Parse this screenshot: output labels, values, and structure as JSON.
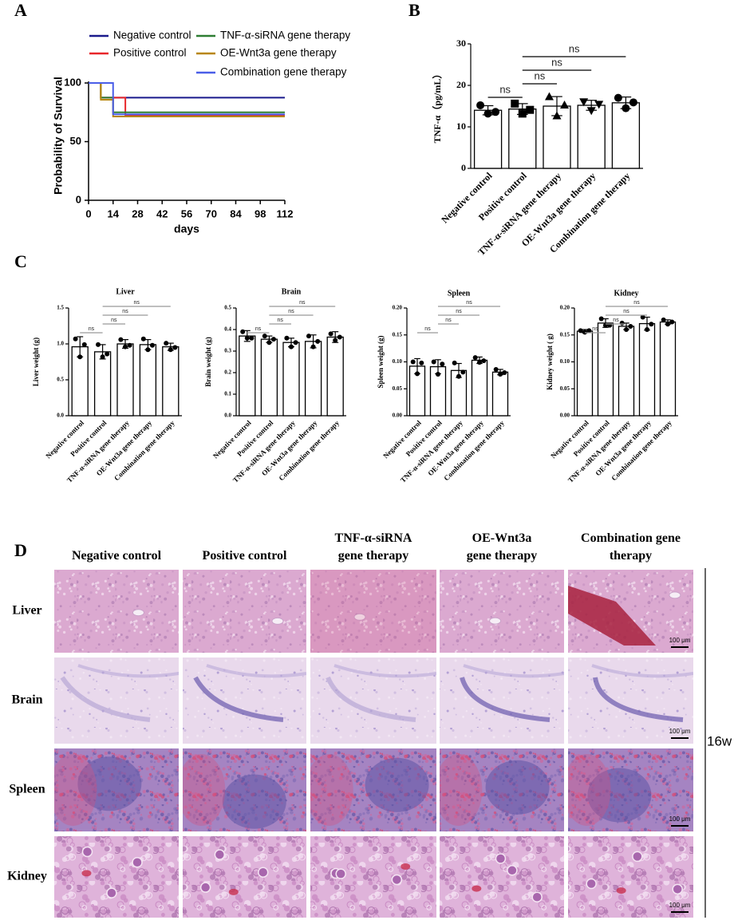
{
  "panel_labels": [
    "A",
    "B",
    "C",
    "D"
  ],
  "chart_data": [
    {
      "type": "line",
      "step": true,
      "xlabel": "days",
      "ylabel": "Probability of Survival",
      "x": [
        0,
        7,
        14,
        21,
        112
      ],
      "xlim": [
        0,
        112
      ],
      "xticks": [
        0,
        14,
        28,
        42,
        56,
        70,
        84,
        98,
        112
      ],
      "ylim": [
        0,
        100
      ],
      "yticks": [
        0,
        50,
        100
      ],
      "series": [
        {
          "name": "Negative control",
          "color": "#1a1a8c",
          "values": [
            100,
            87.5,
            87.5,
            87.5,
            87.5
          ]
        },
        {
          "name": "Positive control",
          "color": "#e8262a",
          "values": [
            100,
            87.5,
            87.5,
            72.7,
            72.7
          ]
        },
        {
          "name": "TNF-α-siRNA gene therapy",
          "color": "#2e7d32",
          "values": [
            100,
            87.5,
            75,
            75,
            75
          ]
        },
        {
          "name": "OE-Wnt3a gene therapy",
          "color": "#b8860b",
          "values": [
            100,
            85.7,
            71.4,
            71.4,
            71.4
          ]
        },
        {
          "name": "Combination gene therapy",
          "color": "#4a5ee8",
          "values": [
            100,
            100,
            73.3,
            73.3,
            73.3
          ]
        }
      ]
    },
    {
      "type": "bar",
      "ylabel": "TNF-α（pg/mL）",
      "categories": [
        "Negative control",
        "Positive control",
        "TNF-α-siRNA gene therapy",
        "OE-Wnt3a gene therapy",
        "Combination gene therapy"
      ],
      "values": [
        14.0,
        14.3,
        15.0,
        15.2,
        15.8
      ],
      "errors": [
        1.1,
        1.3,
        2.3,
        1.2,
        1.4
      ],
      "points": [
        [
          15.2,
          13.2,
          13.6
        ],
        [
          15.6,
          13.2,
          14.1
        ],
        [
          17.2,
          12.6,
          15.2
        ],
        [
          16.1,
          14.0,
          15.5
        ],
        [
          17.0,
          14.5,
          15.9
        ]
      ],
      "markers": [
        "circle",
        "square",
        "triangle",
        "triangle-down",
        "circle"
      ],
      "color": "#ffffff",
      "ylim": [
        0,
        30
      ],
      "yticks": [
        0,
        10,
        20,
        30
      ],
      "brackets": [
        {
          "from": 0,
          "to": 1,
          "label": "ns"
        },
        {
          "from": 1,
          "to": 2,
          "label": "ns"
        },
        {
          "from": 1,
          "to": 3,
          "label": "ns"
        },
        {
          "from": 1,
          "to": 4,
          "label": "ns"
        }
      ]
    },
    {
      "type": "bar",
      "title": "Liver",
      "ylabel": "Liver weight (g)",
      "categories": [
        "Negative control",
        "Positive control",
        "TNF-α-siRNA gene therapy",
        "OE-Wnt3a gene therapy",
        "Combination gene therapy"
      ],
      "values": [
        0.96,
        0.89,
        1.0,
        0.99,
        0.96
      ],
      "errors": [
        0.14,
        0.1,
        0.06,
        0.07,
        0.05
      ],
      "points": [
        [
          1.07,
          0.82,
          0.99
        ],
        [
          0.99,
          0.82,
          0.86
        ],
        [
          1.06,
          0.96,
          0.98
        ],
        [
          1.07,
          0.92,
          0.98
        ],
        [
          1.01,
          0.92,
          0.95
        ]
      ],
      "color": "#ffffff",
      "ylim": [
        0,
        1.5
      ],
      "yticks": [
        {
          "value": 0,
          "label": "0.0"
        },
        0.5,
        {
          "value": 1,
          "label": "1.0"
        },
        1.5
      ],
      "brackets": [
        {
          "from": 0,
          "to": 1,
          "label": "ns"
        },
        {
          "from": 1,
          "to": 2,
          "label": "ns"
        },
        {
          "from": 1,
          "to": 3,
          "label": "ns"
        },
        {
          "from": 1,
          "to": 4,
          "label": "ns"
        }
      ]
    },
    {
      "type": "bar",
      "title": "Brain",
      "ylabel": "Brain weight (g)",
      "categories": [
        "Negative control",
        "Positive control",
        "TNF-α-siRNA gene therapy",
        "OE-Wnt3a gene therapy",
        "Combination gene therapy"
      ],
      "values": [
        0.37,
        0.355,
        0.34,
        0.345,
        0.365
      ],
      "errors": [
        0.025,
        0.015,
        0.02,
        0.03,
        0.025
      ],
      "points": [
        [
          0.39,
          0.36,
          0.36
        ],
        [
          0.37,
          0.34,
          0.355
        ],
        [
          0.36,
          0.32,
          0.34
        ],
        [
          0.37,
          0.32,
          0.345
        ],
        [
          0.38,
          0.35,
          0.365
        ]
      ],
      "color": "#ffffff",
      "ylim": [
        0,
        0.5
      ],
      "yticks": [
        {
          "value": 0,
          "label": "0.0"
        },
        0.1,
        0.2,
        0.3,
        0.4,
        0.5
      ],
      "brackets": [
        {
          "from": 0,
          "to": 1,
          "label": "ns"
        },
        {
          "from": 1,
          "to": 2,
          "label": "ns"
        },
        {
          "from": 1,
          "to": 3,
          "label": "ns"
        },
        {
          "from": 1,
          "to": 4,
          "label": "ns"
        }
      ]
    },
    {
      "type": "bar",
      "title": "Spleen",
      "ylabel": "Spleen weight (g)",
      "categories": [
        "Negative control",
        "Positive control",
        "TNF-α-siRNA gene therapy",
        "OE-Wnt3a gene therapy",
        "Combination gene therapy"
      ],
      "values": [
        0.092,
        0.091,
        0.084,
        0.103,
        0.081
      ],
      "errors": [
        0.014,
        0.013,
        0.013,
        0.006,
        0.005
      ],
      "points": [
        [
          0.1,
          0.078,
          0.098
        ],
        [
          0.1,
          0.077,
          0.096
        ],
        [
          0.098,
          0.073,
          0.081
        ],
        [
          0.108,
          0.099,
          0.102
        ],
        [
          0.086,
          0.077,
          0.08
        ]
      ],
      "color": "#ffffff",
      "ylim": [
        0,
        0.2
      ],
      "yticks": [
        {
          "value": 0,
          "label": "0.00"
        },
        {
          "value": 0.05,
          "label": "0.05"
        },
        {
          "value": 0.1,
          "label": "0.10"
        },
        {
          "value": 0.15,
          "label": "0.15"
        },
        {
          "value": 0.2,
          "label": "0.20"
        }
      ],
      "brackets": [
        {
          "from": 0,
          "to": 1,
          "label": "ns"
        },
        {
          "from": 1,
          "to": 2,
          "label": "ns"
        },
        {
          "from": 1,
          "to": 3,
          "label": "ns"
        },
        {
          "from": 1,
          "to": 4,
          "label": "ns"
        }
      ]
    },
    {
      "type": "bar",
      "title": "Kidney",
      "ylabel": "Kidney weight ( g)",
      "categories": [
        "Negative control",
        "Positive control",
        "TNF-α-siRNA gene therapy",
        "OE-Wnt3a gene therapy",
        "Combination gene therapy"
      ],
      "values": [
        0.157,
        0.172,
        0.166,
        0.171,
        0.174
      ],
      "errors": [
        0.003,
        0.008,
        0.006,
        0.012,
        0.004
      ],
      "points": [
        [
          0.158,
          0.155,
          0.158
        ],
        [
          0.18,
          0.168,
          0.168
        ],
        [
          0.172,
          0.16,
          0.166
        ],
        [
          0.183,
          0.16,
          0.17
        ],
        [
          0.178,
          0.17,
          0.174
        ]
      ],
      "color": "#ffffff",
      "ylim": [
        0,
        0.2
      ],
      "yticks": [
        {
          "value": 0,
          "label": "0.00"
        },
        {
          "value": 0.05,
          "label": "0.05"
        },
        {
          "value": 0.1,
          "label": "0.10"
        },
        {
          "value": 0.15,
          "label": "0.15"
        },
        {
          "value": 0.2,
          "label": "0.20"
        }
      ],
      "brackets": [
        {
          "from": 0,
          "to": 1,
          "label": "ns"
        },
        {
          "from": 1,
          "to": 2,
          "label": "ns"
        },
        {
          "from": 1,
          "to": 3,
          "label": "ns"
        },
        {
          "from": 1,
          "to": 4,
          "label": "ns"
        }
      ]
    }
  ],
  "histology": {
    "columns": [
      "Negative control",
      "Positive control",
      "TNF-α-siRNA gene therapy",
      "OE-Wnt3a gene therapy",
      "Combination gene therapy"
    ],
    "rows": [
      "Liver",
      "Brain",
      "Spleen",
      "Kidney"
    ],
    "scale_bar": "100 μm",
    "time_label": "16w"
  }
}
